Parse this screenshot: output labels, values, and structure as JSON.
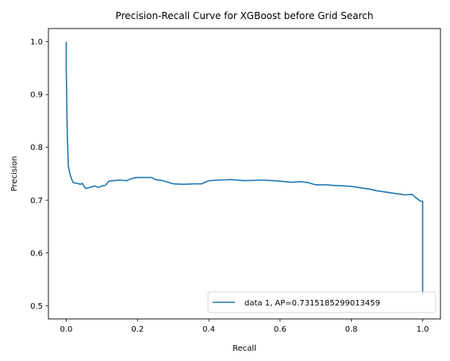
{
  "chart_data": {
    "type": "line",
    "title": "Precision-Recall Curve for XGBoost before Grid Search",
    "xlabel": "Recall",
    "ylabel": "Precision",
    "xlim": [
      -0.05,
      1.05
    ],
    "ylim": [
      0.475,
      1.025
    ],
    "xticks": [
      0.0,
      0.2,
      0.4,
      0.6,
      0.8,
      1.0
    ],
    "xtick_labels": [
      "0.0",
      "0.2",
      "0.4",
      "0.6",
      "0.8",
      "1.0"
    ],
    "yticks": [
      0.5,
      0.6,
      0.7,
      0.8,
      0.9,
      1.0
    ],
    "ytick_labels": [
      "0.5",
      "0.6",
      "0.7",
      "0.8",
      "0.9",
      "1.0"
    ],
    "grid": false,
    "legend_position": "lower-right",
    "series": [
      {
        "name": "data 1, AP=0.7315185299013459",
        "color": "#1f77b4",
        "x": [
          0.0,
          0.0,
          0.003,
          0.006,
          0.01,
          0.015,
          0.02,
          0.03,
          0.04,
          0.045,
          0.05,
          0.055,
          0.06,
          0.07,
          0.08,
          0.09,
          0.1,
          0.11,
          0.12,
          0.13,
          0.15,
          0.17,
          0.18,
          0.19,
          0.2,
          0.22,
          0.24,
          0.25,
          0.27,
          0.3,
          0.33,
          0.36,
          0.38,
          0.4,
          0.43,
          0.46,
          0.5,
          0.55,
          0.58,
          0.6,
          0.63,
          0.66,
          0.68,
          0.7,
          0.73,
          0.75,
          0.78,
          0.8,
          0.82,
          0.85,
          0.87,
          0.9,
          0.93,
          0.95,
          0.97,
          0.98,
          0.99,
          0.995,
          1.0,
          1.0
        ],
        "y": [
          1.0,
          0.95,
          0.82,
          0.765,
          0.75,
          0.74,
          0.733,
          0.732,
          0.73,
          0.732,
          0.726,
          0.722,
          0.723,
          0.725,
          0.727,
          0.724,
          0.727,
          0.728,
          0.736,
          0.737,
          0.738,
          0.737,
          0.74,
          0.742,
          0.743,
          0.743,
          0.743,
          0.739,
          0.737,
          0.731,
          0.73,
          0.731,
          0.731,
          0.737,
          0.738,
          0.739,
          0.737,
          0.738,
          0.737,
          0.736,
          0.734,
          0.735,
          0.733,
          0.729,
          0.729,
          0.728,
          0.727,
          0.726,
          0.724,
          0.721,
          0.718,
          0.715,
          0.712,
          0.71,
          0.711,
          0.705,
          0.7,
          0.698,
          0.698,
          0.52
        ]
      }
    ]
  }
}
